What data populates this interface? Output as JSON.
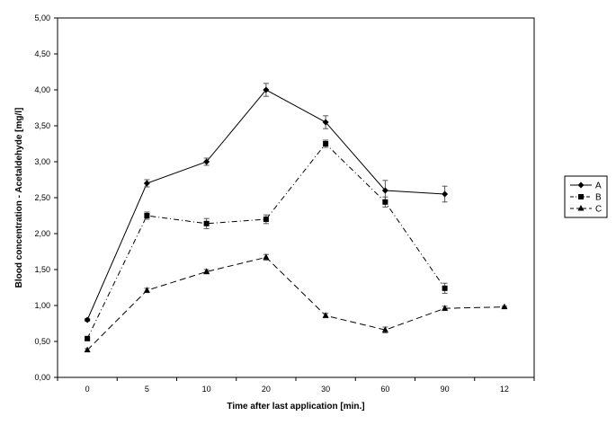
{
  "chart_data": {
    "type": "line",
    "title": "",
    "xlabel": "Time after last application [min.]",
    "ylabel": "Blood concentration - Acetaldehyde [mg/l]",
    "categories": [
      "0",
      "5",
      "10",
      "20",
      "30",
      "60",
      "90",
      "12"
    ],
    "ylim": [
      0,
      5
    ],
    "yticks": [
      "0,00",
      "0,50",
      "1,00",
      "1,50",
      "2,00",
      "2,50",
      "3,00",
      "3,50",
      "4,00",
      "4,50",
      "5,00"
    ],
    "grid": false,
    "legend_position": "right",
    "series": [
      {
        "name": "A",
        "marker": "diamond",
        "dash": "solid",
        "values": [
          0.8,
          2.7,
          3.0,
          4.0,
          3.55,
          2.6,
          2.55,
          null
        ],
        "errors": [
          0.02,
          0.05,
          0.05,
          0.09,
          0.09,
          0.14,
          0.11,
          null
        ]
      },
      {
        "name": "B",
        "marker": "square",
        "dash": "dashdot",
        "values": [
          0.54,
          2.25,
          2.14,
          2.2,
          3.25,
          2.44,
          1.24,
          null
        ],
        "errors": [
          0.02,
          0.05,
          0.07,
          0.06,
          0.05,
          0.07,
          0.07,
          null
        ]
      },
      {
        "name": "C",
        "marker": "triangle",
        "dash": "dashed",
        "values": [
          0.38,
          1.21,
          1.47,
          1.67,
          0.86,
          0.66,
          0.96,
          0.98
        ],
        "errors": [
          0.02,
          0.03,
          0.03,
          0.04,
          0.03,
          0.04,
          0.03,
          0.01
        ]
      }
    ]
  }
}
